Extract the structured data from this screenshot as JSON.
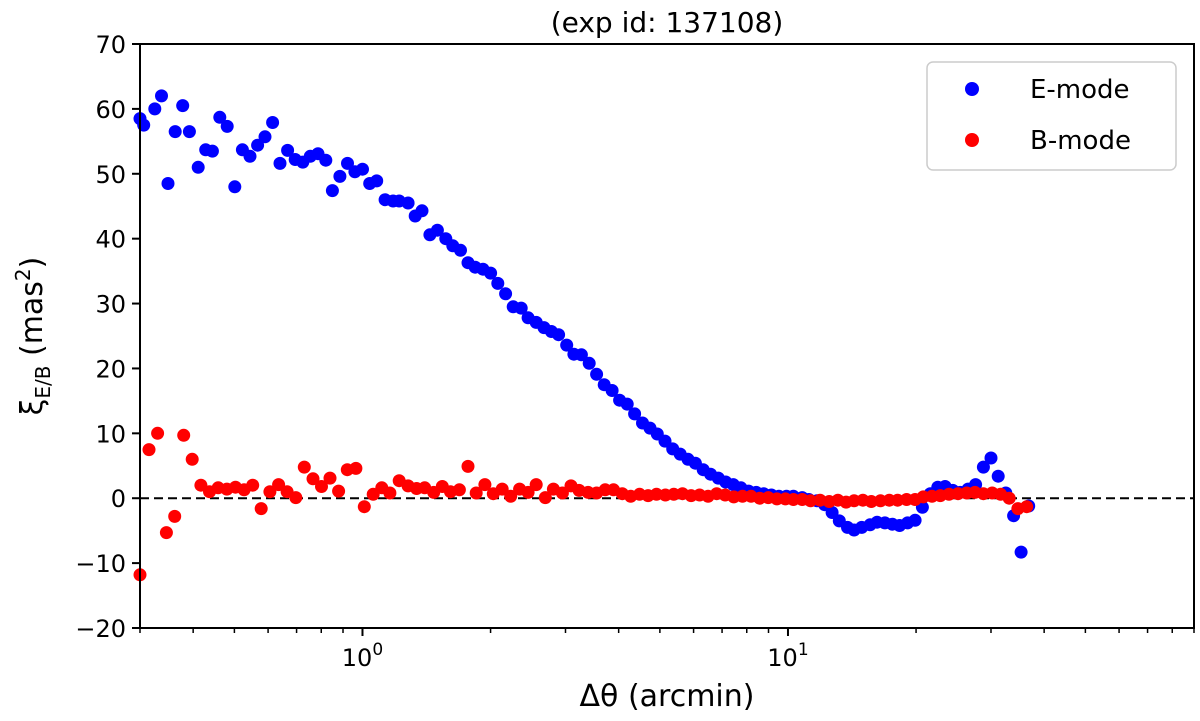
{
  "chart_data": {
    "type": "scatter",
    "title": "(exp id: 137108)",
    "xlabel_symbol": "Δθ",
    "xlabel_unit": "(arcmin)",
    "ylabel_symbol": "ξ",
    "ylabel_subscript": "E/B",
    "ylabel_unit_prefix": "(mas",
    "ylabel_unit_exponent": "2",
    "ylabel_unit_suffix": ")",
    "x_scale": "log",
    "xlim": [
      0.3,
      90
    ],
    "ylim": [
      -20,
      70
    ],
    "y_ticks": [
      -20,
      -10,
      0,
      10,
      20,
      30,
      40,
      50,
      60,
      70
    ],
    "y_tick_labels": [
      "−20",
      "−10",
      "0",
      "10",
      "20",
      "30",
      "40",
      "50",
      "60",
      "70"
    ],
    "x_ticks": [
      {
        "value": 1,
        "base": "10",
        "exponent": "0"
      },
      {
        "value": 10,
        "base": "10",
        "exponent": "1"
      }
    ],
    "reference_line": {
      "y": 0,
      "style": "dashed",
      "color": "#000000"
    },
    "grid": false,
    "legend_position": "top-right",
    "series": [
      {
        "name": "E-mode",
        "color": "#0000ff",
        "points": [
          [
            0.3,
            58.5
          ],
          [
            0.306,
            57.5
          ],
          [
            0.325,
            60.0
          ],
          [
            0.337,
            62.0
          ],
          [
            0.349,
            48.5
          ],
          [
            0.363,
            56.5
          ],
          [
            0.378,
            60.5
          ],
          [
            0.392,
            56.5
          ],
          [
            0.411,
            51.0
          ],
          [
            0.428,
            53.7
          ],
          [
            0.444,
            53.5
          ],
          [
            0.462,
            58.7
          ],
          [
            0.481,
            57.3
          ],
          [
            0.501,
            48.0
          ],
          [
            0.522,
            53.7
          ],
          [
            0.544,
            52.7
          ],
          [
            0.567,
            54.4
          ],
          [
            0.59,
            55.7
          ],
          [
            0.615,
            57.9
          ],
          [
            0.64,
            51.6
          ],
          [
            0.667,
            53.6
          ],
          [
            0.695,
            52.2
          ],
          [
            0.724,
            51.8
          ],
          [
            0.754,
            52.7
          ],
          [
            0.786,
            53.1
          ],
          [
            0.82,
            52.1
          ],
          [
            0.85,
            47.4
          ],
          [
            0.885,
            49.6
          ],
          [
            0.922,
            51.6
          ],
          [
            0.96,
            50.3
          ],
          [
            1.0,
            50.7
          ],
          [
            1.04,
            48.5
          ],
          [
            1.08,
            48.9
          ],
          [
            1.13,
            46.0
          ],
          [
            1.18,
            45.8
          ],
          [
            1.22,
            45.8
          ],
          [
            1.28,
            45.5
          ],
          [
            1.33,
            43.5
          ],
          [
            1.38,
            44.3
          ],
          [
            1.44,
            40.6
          ],
          [
            1.5,
            41.3
          ],
          [
            1.57,
            40.0
          ],
          [
            1.63,
            38.9
          ],
          [
            1.7,
            38.2
          ],
          [
            1.77,
            36.3
          ],
          [
            1.84,
            35.6
          ],
          [
            1.92,
            35.3
          ],
          [
            2.0,
            34.7
          ],
          [
            2.08,
            33.1
          ],
          [
            2.17,
            31.5
          ],
          [
            2.26,
            29.5
          ],
          [
            2.36,
            29.3
          ],
          [
            2.45,
            27.8
          ],
          [
            2.56,
            27.1
          ],
          [
            2.67,
            26.3
          ],
          [
            2.78,
            25.7
          ],
          [
            2.89,
            25.2
          ],
          [
            3.02,
            23.6
          ],
          [
            3.14,
            22.2
          ],
          [
            3.27,
            22.1
          ],
          [
            3.41,
            20.8
          ],
          [
            3.55,
            19.1
          ],
          [
            3.7,
            17.5
          ],
          [
            3.86,
            16.6
          ],
          [
            4.02,
            15.1
          ],
          [
            4.19,
            14.5
          ],
          [
            4.36,
            13.0
          ],
          [
            4.55,
            11.6
          ],
          [
            4.74,
            10.8
          ],
          [
            4.93,
            9.9
          ],
          [
            5.14,
            8.8
          ],
          [
            5.36,
            7.6
          ],
          [
            5.58,
            6.8
          ],
          [
            5.82,
            6.0
          ],
          [
            6.06,
            5.4
          ],
          [
            6.32,
            4.4
          ],
          [
            6.58,
            3.7
          ],
          [
            6.86,
            3.1
          ],
          [
            7.14,
            2.5
          ],
          [
            7.44,
            2.1
          ],
          [
            7.75,
            1.6
          ],
          [
            8.08,
            1.1
          ],
          [
            8.42,
            0.9
          ],
          [
            8.77,
            0.7
          ],
          [
            9.14,
            0.5
          ],
          [
            9.52,
            0.3
          ],
          [
            9.92,
            0.3
          ],
          [
            10.3,
            0.3
          ],
          [
            10.8,
            0.1
          ],
          [
            11.2,
            -0.2
          ],
          [
            11.7,
            -0.4
          ],
          [
            12.2,
            -1.0
          ],
          [
            12.7,
            -2.2
          ],
          [
            13.2,
            -3.5
          ],
          [
            13.8,
            -4.5
          ],
          [
            14.3,
            -4.9
          ],
          [
            14.9,
            -4.5
          ],
          [
            15.6,
            -4.1
          ],
          [
            16.2,
            -3.7
          ],
          [
            16.9,
            -3.8
          ],
          [
            17.6,
            -4.0
          ],
          [
            18.3,
            -4.2
          ],
          [
            19.1,
            -3.8
          ],
          [
            19.9,
            -3.4
          ],
          [
            20.7,
            -1.4
          ],
          [
            21.6,
            0.7
          ],
          [
            22.5,
            1.7
          ],
          [
            23.4,
            1.8
          ],
          [
            24.4,
            1.2
          ],
          [
            25.4,
            0.9
          ],
          [
            26.5,
            1.4
          ],
          [
            27.6,
            2.1
          ],
          [
            28.8,
            4.8
          ],
          [
            30.0,
            6.2
          ],
          [
            31.2,
            3.4
          ],
          [
            32.5,
            0.8
          ],
          [
            33.9,
            -2.7
          ],
          [
            35.3,
            -8.3
          ],
          [
            36.8,
            -1.2
          ]
        ]
      },
      {
        "name": "B-mode",
        "color": "#ff0000",
        "points": [
          [
            0.3,
            -11.8
          ],
          [
            0.315,
            7.5
          ],
          [
            0.33,
            10.0
          ],
          [
            0.346,
            -5.3
          ],
          [
            0.362,
            -2.8
          ],
          [
            0.38,
            9.7
          ],
          [
            0.398,
            6.0
          ],
          [
            0.417,
            2.0
          ],
          [
            0.437,
            1.0
          ],
          [
            0.458,
            1.6
          ],
          [
            0.48,
            1.4
          ],
          [
            0.503,
            1.7
          ],
          [
            0.527,
            1.3
          ],
          [
            0.552,
            2.0
          ],
          [
            0.578,
            -1.6
          ],
          [
            0.606,
            1.0
          ],
          [
            0.635,
            2.1
          ],
          [
            0.665,
            1.0
          ],
          [
            0.697,
            0.1
          ],
          [
            0.73,
            4.8
          ],
          [
            0.765,
            3.0
          ],
          [
            0.801,
            1.8
          ],
          [
            0.839,
            3.1
          ],
          [
            0.879,
            1.1
          ],
          [
            0.921,
            4.4
          ],
          [
            0.965,
            4.6
          ],
          [
            1.01,
            -1.3
          ],
          [
            1.06,
            0.6
          ],
          [
            1.11,
            1.6
          ],
          [
            1.16,
            0.8
          ],
          [
            1.22,
            2.7
          ],
          [
            1.28,
            1.9
          ],
          [
            1.34,
            1.5
          ],
          [
            1.4,
            1.6
          ],
          [
            1.47,
            0.9
          ],
          [
            1.54,
            1.8
          ],
          [
            1.61,
            1.0
          ],
          [
            1.69,
            1.3
          ],
          [
            1.77,
            4.9
          ],
          [
            1.85,
            0.8
          ],
          [
            1.94,
            2.1
          ],
          [
            2.03,
            0.7
          ],
          [
            2.13,
            1.4
          ],
          [
            2.23,
            0.3
          ],
          [
            2.34,
            1.4
          ],
          [
            2.45,
            0.9
          ],
          [
            2.56,
            2.1
          ],
          [
            2.69,
            0.1
          ],
          [
            2.81,
            1.4
          ],
          [
            2.95,
            0.8
          ],
          [
            3.09,
            1.9
          ],
          [
            3.23,
            1.2
          ],
          [
            3.39,
            0.9
          ],
          [
            3.55,
            0.8
          ],
          [
            3.72,
            1.3
          ],
          [
            3.89,
            1.3
          ],
          [
            4.08,
            0.7
          ],
          [
            4.27,
            0.3
          ],
          [
            4.48,
            0.6
          ],
          [
            4.69,
            0.4
          ],
          [
            4.91,
            0.6
          ],
          [
            5.15,
            0.5
          ],
          [
            5.39,
            0.6
          ],
          [
            5.65,
            0.7
          ],
          [
            5.92,
            0.4
          ],
          [
            6.2,
            0.5
          ],
          [
            6.49,
            0.3
          ],
          [
            6.8,
            0.7
          ],
          [
            7.12,
            0.5
          ],
          [
            7.46,
            0.2
          ],
          [
            7.82,
            0.3
          ],
          [
            8.19,
            0.3
          ],
          [
            8.58,
            0.0
          ],
          [
            8.99,
            0.1
          ],
          [
            9.42,
            -0.1
          ],
          [
            9.86,
            -0.1
          ],
          [
            10.3,
            -0.2
          ],
          [
            10.8,
            -0.2
          ],
          [
            11.3,
            -0.4
          ],
          [
            11.9,
            -0.3
          ],
          [
            12.5,
            -0.5
          ],
          [
            13.1,
            -0.3
          ],
          [
            13.7,
            -0.6
          ],
          [
            14.3,
            -0.4
          ],
          [
            15.0,
            -0.3
          ],
          [
            15.7,
            -0.5
          ],
          [
            16.5,
            -0.4
          ],
          [
            17.3,
            -0.3
          ],
          [
            18.1,
            -0.3
          ],
          [
            19.0,
            -0.2
          ],
          [
            19.9,
            -0.2
          ],
          [
            20.8,
            0.2
          ],
          [
            21.8,
            0.3
          ],
          [
            22.8,
            0.4
          ],
          [
            23.9,
            0.6
          ],
          [
            25.1,
            0.7
          ],
          [
            26.3,
            0.8
          ],
          [
            27.5,
            0.9
          ],
          [
            28.8,
            0.7
          ],
          [
            30.2,
            0.8
          ],
          [
            31.6,
            0.6
          ],
          [
            33.1,
            0.0
          ],
          [
            34.7,
            -1.6
          ],
          [
            36.4,
            -1.3
          ]
        ]
      }
    ]
  }
}
